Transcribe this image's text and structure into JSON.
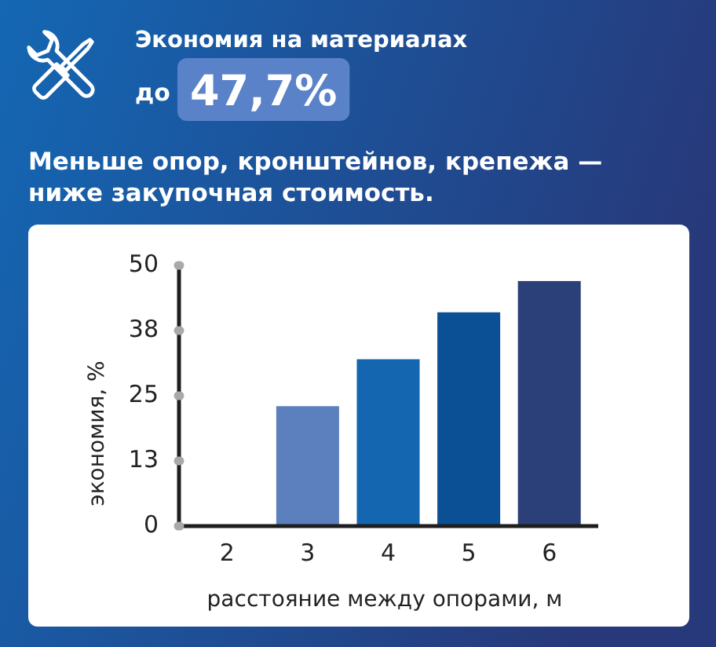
{
  "chart_data": {
    "type": "bar",
    "title": "Экономия на материалах",
    "subtitle": "до 47,7%",
    "annotations": [
      "Меньше опор, кронштейнов, крепежа — ниже закупочная стоимость."
    ],
    "xlabel": "расстояние между опорами, м",
    "ylabel": "экономия, %",
    "categories": [
      "2",
      "3",
      "4",
      "5",
      "6"
    ],
    "values": [
      0,
      23,
      32,
      41,
      47
    ],
    "colors": [
      "#5b80bd",
      "#5b80bd",
      "#1566b1",
      "#0b4f94",
      "#2b3f78"
    ],
    "ylim": [
      0,
      50
    ],
    "yticks": [
      0,
      {
        "value": 12.5,
        "label": "13"
      },
      25,
      {
        "value": 37.5,
        "label": "38"
      },
      50
    ]
  }
}
